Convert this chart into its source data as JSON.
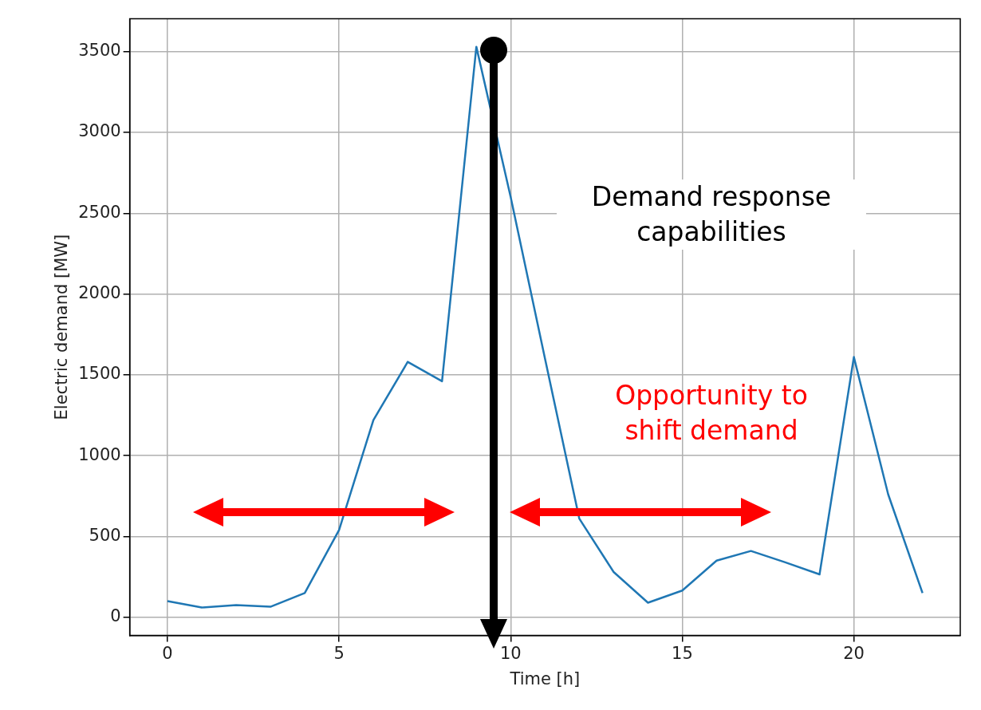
{
  "chart_data": {
    "type": "line",
    "xlabel": "Time [h]",
    "ylabel": "Electric demand [MW]",
    "x": [
      0,
      1,
      2,
      3,
      4,
      5,
      6,
      7,
      8,
      9,
      10,
      11,
      12,
      13,
      14,
      15,
      16,
      17,
      18,
      19,
      20,
      21,
      22
    ],
    "series": [
      {
        "color": "#1f77b4",
        "values": [
          100,
          60,
          75,
          65,
          150,
          540,
          1220,
          1580,
          1460,
          3530,
          2600,
          1600,
          610,
          280,
          90,
          165,
          350,
          410,
          340,
          265,
          1610,
          760,
          150
        ]
      }
    ],
    "xlim": [
      -1.1,
      23.1
    ],
    "ylim": [
      -113,
      3703
    ],
    "xticks": [
      0,
      5,
      10,
      15,
      20
    ],
    "yticks": [
      0,
      500,
      1000,
      1500,
      2000,
      2500,
      3000,
      3500
    ],
    "grid": true,
    "legend": false,
    "marker": "none",
    "line_style": "solid",
    "annotations": [
      "Demand response capabilities",
      "Opportunity to shift demand"
    ]
  }
}
